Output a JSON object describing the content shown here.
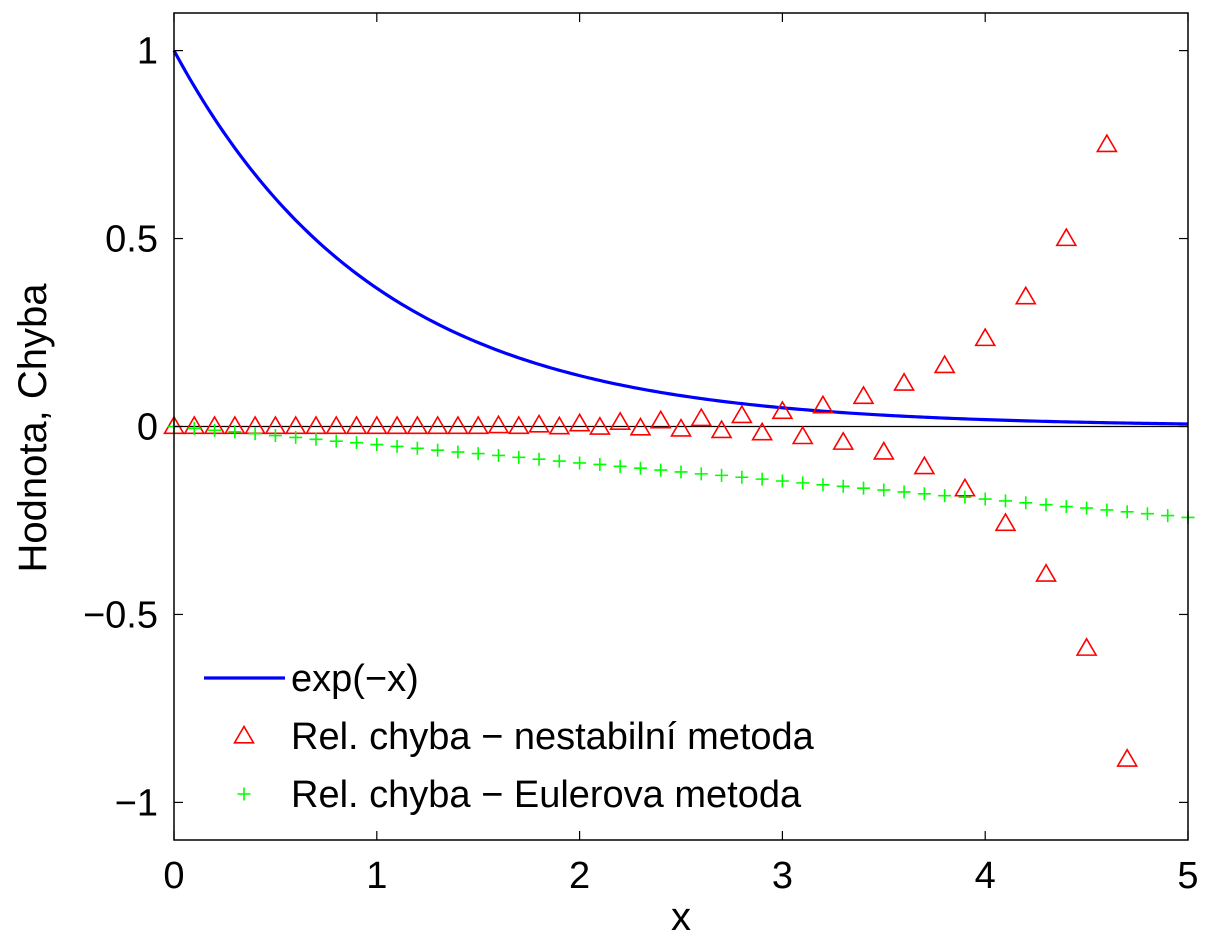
{
  "chart_data": {
    "type": "line",
    "xlabel": "x",
    "ylabel": "Hodnota, Chyba",
    "xlim": [
      0,
      5
    ],
    "ylim": [
      -1.1,
      1.1
    ],
    "xticks": [
      0,
      1,
      2,
      3,
      4,
      5
    ],
    "xtick_labels": [
      "0",
      "1",
      "2",
      "3",
      "4",
      "5"
    ],
    "yticks": [
      -1,
      -0.5,
      0,
      0.5,
      1
    ],
    "ytick_labels": [
      "−1",
      "−0.5",
      "0",
      "0.5",
      "1"
    ],
    "grid": false,
    "zero_line": true,
    "legend_position": "bottom-left",
    "series": [
      {
        "name": "exp(−x)",
        "style": "line",
        "color": "#0000ff",
        "function": "exp(-x)",
        "x_range": [
          0,
          5
        ]
      },
      {
        "name": "Rel. chyba − nestabilní metoda",
        "style": "triangle",
        "color": "#ff0000",
        "x": [
          0,
          0.1,
          0.2,
          0.3,
          0.4,
          0.5,
          0.6,
          0.7,
          0.8,
          0.9,
          1.0,
          1.1,
          1.2,
          1.3,
          1.4,
          1.5,
          1.6,
          1.7,
          1.8,
          1.9,
          2.0,
          2.1,
          2.2,
          2.3,
          2.4,
          2.5,
          2.6,
          2.7,
          2.8,
          2.9,
          3.0,
          3.1,
          3.2,
          3.3,
          3.4,
          3.5,
          3.6,
          3.7,
          3.8,
          3.9,
          4.0,
          4.1,
          4.2,
          4.3,
          4.4,
          4.5,
          4.6,
          4.7
        ],
        "y": [
          0,
          0,
          0,
          0,
          0,
          0,
          0,
          0,
          0,
          0,
          0,
          0,
          0,
          0,
          0,
          0,
          0.002,
          0,
          0.004,
          -0.001,
          0.007,
          -0.002,
          0.011,
          -0.004,
          0.015,
          -0.007,
          0.021,
          -0.011,
          0.029,
          -0.017,
          0.04,
          -0.027,
          0.055,
          -0.042,
          0.08,
          -0.068,
          0.115,
          -0.107,
          0.162,
          -0.166,
          0.234,
          -0.258,
          0.345,
          -0.393,
          0.5,
          -0.59,
          0.75,
          -0.885
        ]
      },
      {
        "name": "Rel. chyba − Eulerova metoda",
        "style": "plus",
        "color": "#00ff00",
        "x": [
          0,
          0.1,
          0.2,
          0.3,
          0.4,
          0.5,
          0.6,
          0.7,
          0.8,
          0.9,
          1.0,
          1.1,
          1.2,
          1.3,
          1.4,
          1.5,
          1.6,
          1.7,
          1.8,
          1.9,
          2.0,
          2.1,
          2.2,
          2.3,
          2.4,
          2.5,
          2.6,
          2.7,
          2.8,
          2.9,
          3.0,
          3.1,
          3.2,
          3.3,
          3.4,
          3.5,
          3.6,
          3.7,
          3.8,
          3.9,
          4.0,
          4.1,
          4.2,
          4.3,
          4.4,
          4.5,
          4.6,
          4.7,
          4.8,
          4.9,
          5.0
        ],
        "y": [
          0,
          -0.005,
          -0.01,
          -0.014,
          -0.019,
          -0.024,
          -0.029,
          -0.034,
          -0.039,
          -0.043,
          -0.048,
          -0.053,
          -0.058,
          -0.063,
          -0.068,
          -0.072,
          -0.077,
          -0.082,
          -0.087,
          -0.092,
          -0.097,
          -0.101,
          -0.106,
          -0.111,
          -0.116,
          -0.121,
          -0.126,
          -0.13,
          -0.135,
          -0.14,
          -0.145,
          -0.15,
          -0.155,
          -0.159,
          -0.164,
          -0.169,
          -0.174,
          -0.179,
          -0.184,
          -0.188,
          -0.193,
          -0.198,
          -0.203,
          -0.208,
          -0.213,
          -0.217,
          -0.222,
          -0.227,
          -0.232,
          -0.237,
          -0.242
        ]
      }
    ]
  }
}
